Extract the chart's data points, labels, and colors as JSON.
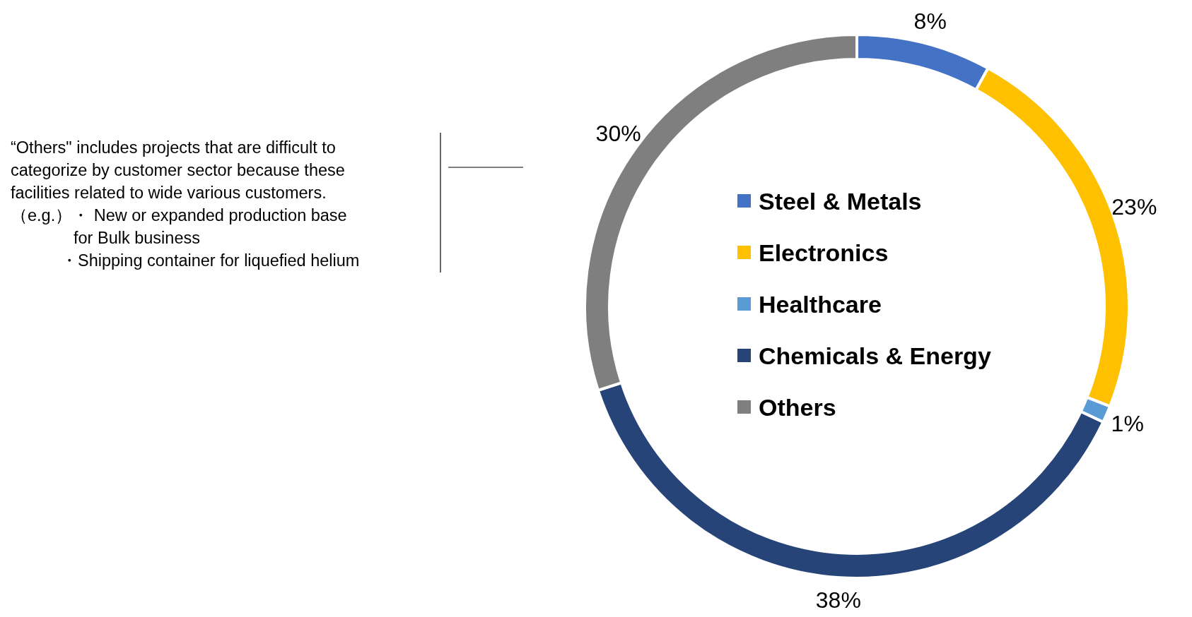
{
  "chart_data": {
    "type": "donut",
    "categories": [
      "Steel & Metals",
      "Electronics",
      "Healthcare",
      "Chemicals & Energy",
      "Others"
    ],
    "values": [
      8,
      23,
      1,
      38,
      30
    ],
    "value_labels": [
      "8%",
      "23%",
      "1%",
      "38%",
      "30%"
    ],
    "colors": [
      "#4472c4",
      "#ffc000",
      "#5b9bd5",
      "#264478",
      "#7f7f7f"
    ],
    "legend": "center",
    "annotations": [
      "“Others\" includes projects that are difficult to",
      "categorize by customer sector because these",
      "facilities related to wide various customers.",
      "（e.g.）・ New or expanded production base",
      "for Bulk business",
      "・Shipping container for liquefied helium"
    ]
  }
}
